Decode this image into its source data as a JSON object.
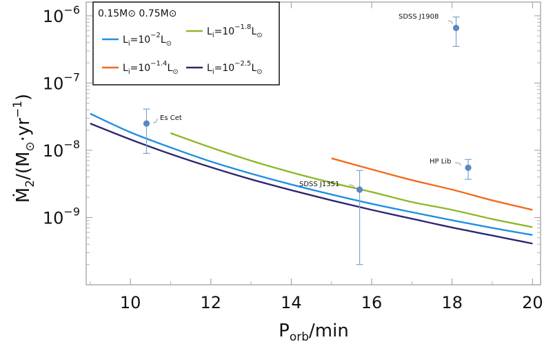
{
  "chart_data": {
    "type": "line",
    "xlabel": "P_orb/min",
    "ylabel": "Ṁ_2/(M_⊙·yr^-1)",
    "x_ticks": [
      10,
      12,
      14,
      16,
      18,
      20
    ],
    "y_ticks": [
      {
        "value": 1e-09,
        "exp": "-9"
      },
      {
        "value": 1e-08,
        "exp": "-8"
      },
      {
        "value": 1e-07,
        "exp": "-7"
      },
      {
        "value": 1e-06,
        "exp": "-6"
      }
    ],
    "xlim": [
      8.9,
      20.2
    ],
    "ylim": [
      1e-10,
      1.6e-06
    ],
    "y_scale": "log",
    "legend": {
      "header": "0.15M⊙ 0.75M⊙",
      "placement": "top-left"
    },
    "series": [
      {
        "name": "Li=10^-2 L⊙",
        "label_exp": "-2",
        "color": "#1f8fe0",
        "x": [
          9,
          10,
          11,
          12,
          13,
          14,
          15,
          16,
          17,
          18,
          19,
          20
        ],
        "y": [
          3.5e-08,
          1.85e-08,
          1.1e-08,
          6.8e-09,
          4.5e-09,
          3.1e-09,
          2.2e-09,
          1.6e-09,
          1.2e-09,
          9.1e-10,
          7e-10,
          5.5e-10
        ]
      },
      {
        "name": "Li=10^-1.4 L⊙",
        "label_exp": "-1.4",
        "color": "#f26a1b",
        "x": [
          15,
          16,
          17,
          18,
          19,
          20
        ],
        "y": [
          7.6e-09,
          5.2e-09,
          3.6e-09,
          2.6e-09,
          1.8e-09,
          1.3e-09
        ]
      },
      {
        "name": "Li=10^-1.8 L⊙",
        "label_exp": "-1.8",
        "color": "#8db82a",
        "x": [
          11,
          12,
          13,
          14,
          15,
          16,
          17,
          18,
          19,
          20
        ],
        "y": [
          1.8e-08,
          1.1e-08,
          7e-09,
          4.7e-09,
          3.3e-09,
          2.4e-09,
          1.7e-09,
          1.3e-09,
          9.5e-10,
          7.2e-10
        ]
      },
      {
        "name": "Li=10^-2.5 L⊙",
        "label_exp": "-2.5",
        "color": "#2e2671",
        "x": [
          9,
          10,
          11,
          12,
          13,
          14,
          15,
          16,
          17,
          18,
          19,
          20
        ],
        "y": [
          2.5e-08,
          1.45e-08,
          8.8e-09,
          5.6e-09,
          3.7e-09,
          2.55e-09,
          1.8e-09,
          1.3e-09,
          9.6e-10,
          7.1e-10,
          5.4e-10,
          4.1e-10
        ]
      }
    ],
    "points": [
      {
        "label": "Es Cet",
        "x": 10.4,
        "y": 2.5e-08,
        "ylow": 9e-09,
        "yhigh": 4.1e-08
      },
      {
        "label": "SDSS J1908",
        "x": 18.1,
        "y": 6.6e-07,
        "ylow": 3.5e-07,
        "yhigh": 9.6e-07
      },
      {
        "label": "HP Lib",
        "x": 18.4,
        "y": 5.5e-09,
        "ylow": 3.7e-09,
        "yhigh": 7.3e-09
      },
      {
        "label": "SDSS J1351",
        "x": 15.7,
        "y": 2.6e-09,
        "ylow": 2e-10,
        "yhigh": 5e-09
      }
    ]
  }
}
